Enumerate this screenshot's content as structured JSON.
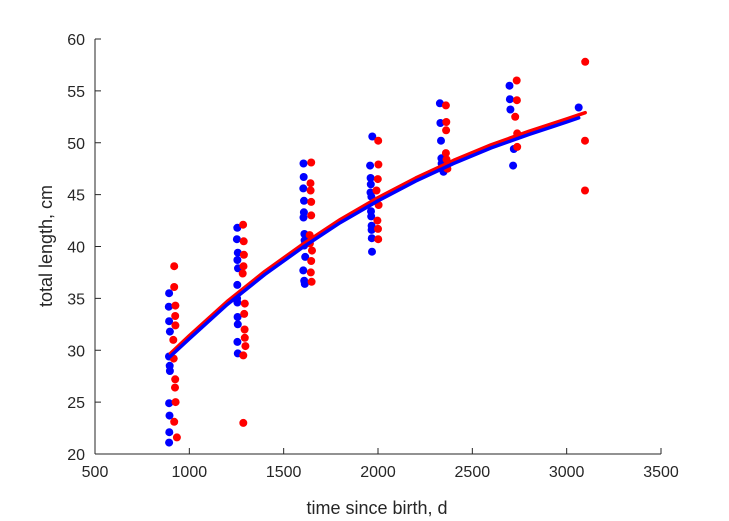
{
  "chart_data": {
    "type": "scatter",
    "title": "",
    "xlabel": "time since birth, d",
    "ylabel": "total length, cm",
    "xlim": [
      500,
      3500
    ],
    "ylim": [
      20,
      60
    ],
    "xticks": [
      500,
      1000,
      1500,
      2000,
      2500,
      3000,
      3500
    ],
    "yticks": [
      20,
      25,
      30,
      35,
      40,
      45,
      50,
      55,
      60
    ],
    "xtick_labels": [
      "500",
      "1000",
      "1500",
      "2000",
      "2500",
      "3000",
      "3500"
    ],
    "ytick_labels": [
      "20",
      "25",
      "30",
      "35",
      "40",
      "45",
      "50",
      "55",
      "60"
    ],
    "grid": false,
    "series": [
      {
        "name": "blue data",
        "color": "#0000ff",
        "points": [
          [
            893,
            35.5
          ],
          [
            891,
            34.2
          ],
          [
            893,
            32.8
          ],
          [
            897,
            31.8
          ],
          [
            892,
            29.4
          ],
          [
            896,
            28.5
          ],
          [
            897,
            28.0
          ],
          [
            893,
            24.9
          ],
          [
            895,
            23.7
          ],
          [
            894,
            22.1
          ],
          [
            893,
            21.1
          ],
          [
            1254,
            41.8
          ],
          [
            1252,
            40.7
          ],
          [
            1257,
            39.4
          ],
          [
            1255,
            38.7
          ],
          [
            1258,
            37.9
          ],
          [
            1254,
            36.3
          ],
          [
            1253,
            35.0
          ],
          [
            1255,
            34.6
          ],
          [
            1256,
            33.2
          ],
          [
            1257,
            32.5
          ],
          [
            1255,
            30.8
          ],
          [
            1257,
            29.7
          ],
          [
            1605,
            48.0
          ],
          [
            1606,
            46.7
          ],
          [
            1604,
            45.6
          ],
          [
            1608,
            44.4
          ],
          [
            1607,
            43.3
          ],
          [
            1605,
            42.8
          ],
          [
            1610,
            41.2
          ],
          [
            1611,
            40.6
          ],
          [
            1609,
            40.1
          ],
          [
            1614,
            39.0
          ],
          [
            1604,
            37.7
          ],
          [
            1609,
            36.7
          ],
          [
            1612,
            36.4
          ],
          [
            1958,
            47.8
          ],
          [
            1961,
            46.6
          ],
          [
            1962,
            46.0
          ],
          [
            1960,
            45.2
          ],
          [
            1965,
            44.8
          ],
          [
            1963,
            43.4
          ],
          [
            1964,
            42.9
          ],
          [
            1966,
            42.0
          ],
          [
            1966,
            41.6
          ],
          [
            1967,
            40.8
          ],
          [
            1968,
            39.5
          ],
          [
            1970,
            50.6
          ],
          [
            2328,
            53.8
          ],
          [
            2331,
            51.9
          ],
          [
            2334,
            50.2
          ],
          [
            2336,
            48.5
          ],
          [
            2337,
            48.0
          ],
          [
            2347,
            47.2
          ],
          [
            2697,
            55.5
          ],
          [
            2699,
            54.2
          ],
          [
            2702,
            53.2
          ],
          [
            2720,
            49.4
          ],
          [
            2716,
            47.8
          ],
          [
            3064,
            53.4
          ]
        ]
      },
      {
        "name": "red data",
        "color": "#ff0000",
        "points": [
          [
            920,
            38.1
          ],
          [
            920,
            36.1
          ],
          [
            926,
            34.3
          ],
          [
            925,
            33.3
          ],
          [
            926,
            32.4
          ],
          [
            915,
            31.0
          ],
          [
            917,
            29.2
          ],
          [
            925,
            27.2
          ],
          [
            924,
            26.4
          ],
          [
            927,
            25.0
          ],
          [
            920,
            23.1
          ],
          [
            934,
            21.6
          ],
          [
            1285,
            42.1
          ],
          [
            1288,
            40.5
          ],
          [
            1289,
            39.2
          ],
          [
            1287,
            38.1
          ],
          [
            1283,
            37.4
          ],
          [
            1294,
            34.5
          ],
          [
            1291,
            33.5
          ],
          [
            1293,
            32.0
          ],
          [
            1294,
            31.2
          ],
          [
            1297,
            30.4
          ],
          [
            1286,
            29.5
          ],
          [
            1286,
            23.0
          ],
          [
            1646,
            48.1
          ],
          [
            1642,
            46.1
          ],
          [
            1643,
            45.4
          ],
          [
            1646,
            44.3
          ],
          [
            1646,
            43.0
          ],
          [
            1638,
            41.1
          ],
          [
            1639,
            40.3
          ],
          [
            1650,
            39.6
          ],
          [
            1646,
            38.6
          ],
          [
            1644,
            37.5
          ],
          [
            1648,
            36.6
          ],
          [
            2001,
            50.2
          ],
          [
            2002,
            47.9
          ],
          [
            1999,
            46.5
          ],
          [
            1992,
            45.4
          ],
          [
            2003,
            44.0
          ],
          [
            1997,
            42.5
          ],
          [
            2000,
            41.7
          ],
          [
            2001,
            40.7
          ],
          [
            2360,
            53.6
          ],
          [
            2362,
            52.0
          ],
          [
            2361,
            51.2
          ],
          [
            2360,
            49.0
          ],
          [
            2363,
            48.4
          ],
          [
            2368,
            47.5
          ],
          [
            2735,
            56.0
          ],
          [
            2736,
            54.1
          ],
          [
            2727,
            52.5
          ],
          [
            2738,
            50.9
          ],
          [
            2738,
            49.6
          ],
          [
            3098,
            57.8
          ],
          [
            3097,
            50.2
          ],
          [
            3097,
            45.4
          ]
        ]
      }
    ],
    "fits": [
      {
        "name": "red fit",
        "color": "#ff0000",
        "points": [
          [
            900,
            29.7
          ],
          [
            1000,
            31.4
          ],
          [
            1200,
            34.7
          ],
          [
            1400,
            37.6
          ],
          [
            1600,
            40.2
          ],
          [
            1800,
            42.6
          ],
          [
            2000,
            44.7
          ],
          [
            2200,
            46.6
          ],
          [
            2400,
            48.3
          ],
          [
            2600,
            49.8
          ],
          [
            2800,
            51.1
          ],
          [
            3000,
            52.3
          ],
          [
            3098,
            52.9
          ]
        ]
      },
      {
        "name": "blue fit",
        "color": "#0000ff",
        "points": [
          [
            893,
            29.3
          ],
          [
            1000,
            31.1
          ],
          [
            1200,
            34.4
          ],
          [
            1400,
            37.3
          ],
          [
            1600,
            39.9
          ],
          [
            1800,
            42.3
          ],
          [
            2000,
            44.4
          ],
          [
            2200,
            46.3
          ],
          [
            2400,
            48.0
          ],
          [
            2600,
            49.5
          ],
          [
            2800,
            50.8
          ],
          [
            3000,
            52.0
          ],
          [
            3064,
            52.4
          ]
        ]
      }
    ]
  }
}
